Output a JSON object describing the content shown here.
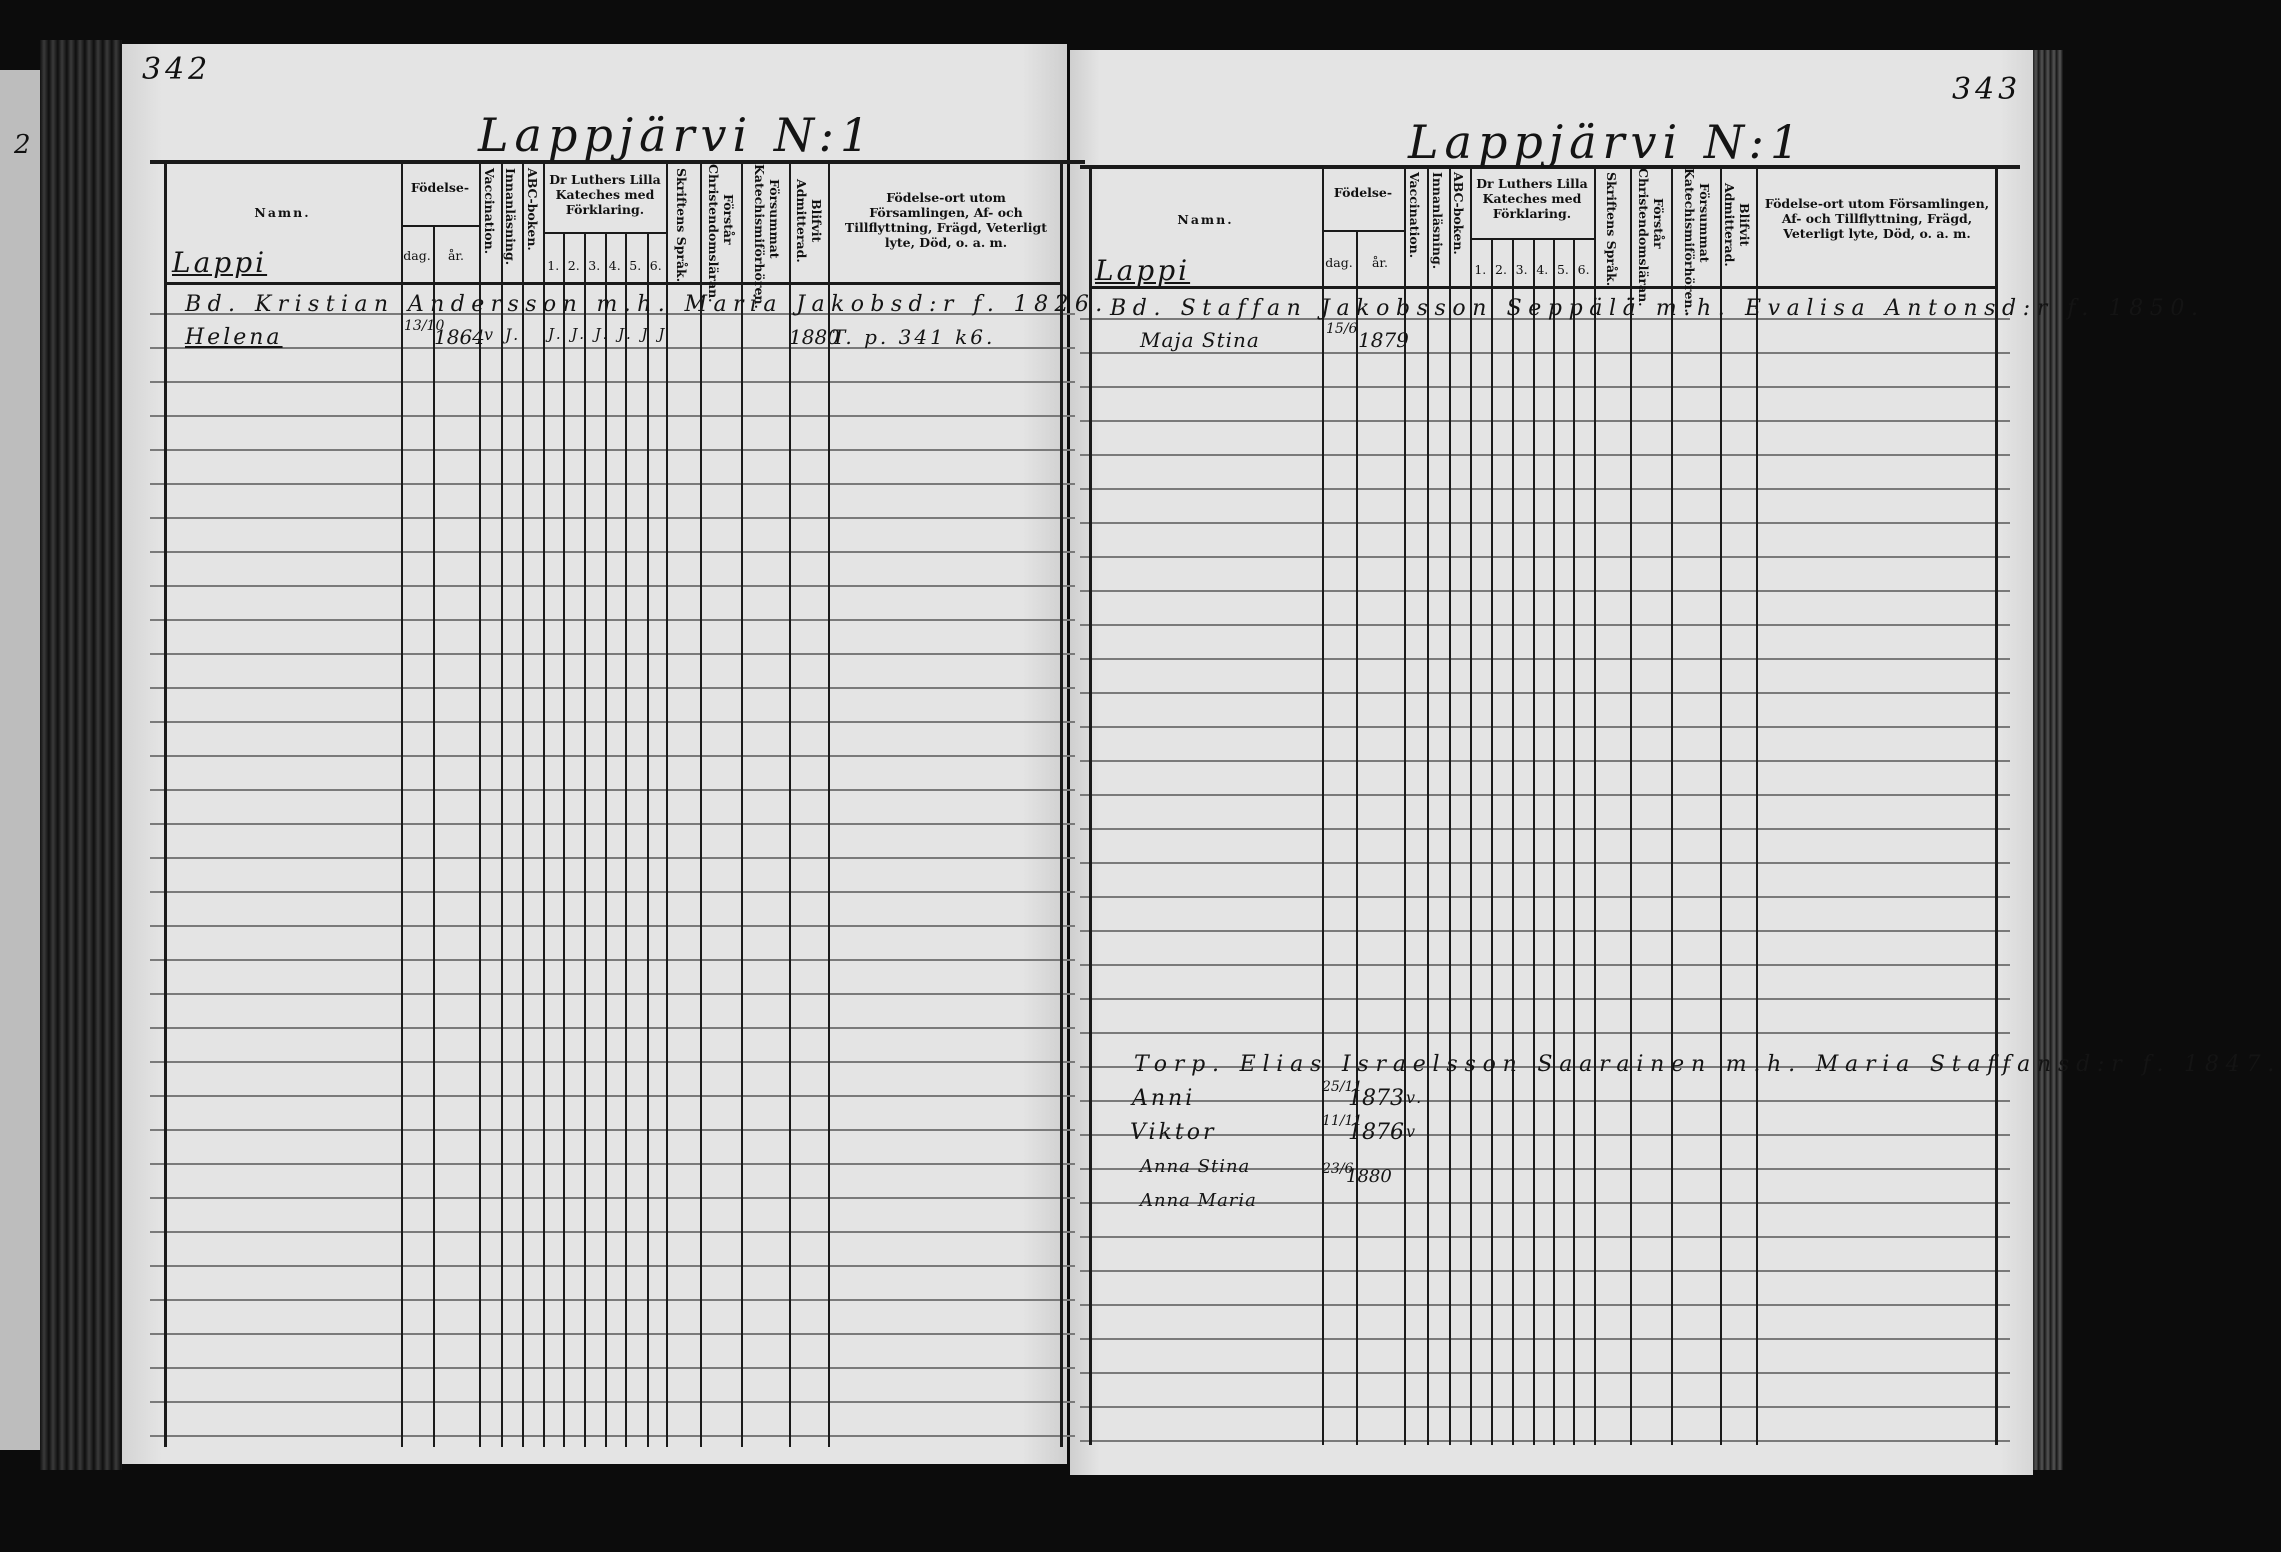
{
  "left_page": {
    "page_number": "342",
    "heading": "Lappjärvi N:1",
    "margin_tab": "2",
    "section": "Lappi",
    "headers": {
      "namn": "Namn.",
      "fodelse": "Födelse-",
      "dag": "dag.",
      "ar": "år.",
      "vaccination": "Vaccination.",
      "innanlasning": "Innanläsning.",
      "abc": "ABC-boken.",
      "luther": "Dr Luthers Lilla Kateches med Förklaring.",
      "luther_parts": [
        "1.",
        "2.",
        "3.",
        "4.",
        "5.",
        "6."
      ],
      "skriftens": "Skriftens Språk.",
      "forstar": "Förstår Christendomsläran.",
      "forsummat": "Försummat Katechismiförhören.",
      "blifvit": "Blifvit Admitterad.",
      "fodelseort": "Födelse-ort utom Församlingen, Af- och Tillflyttning, Frägd, Veterligt lyte, Död, o. a. m."
    },
    "entries": [
      {
        "line": "Bd. Kristian Andersson m.h. Maria Jakobsd:r f. 1826."
      },
      {
        "name": "Helena",
        "dag": "13/10",
        "ar": "1864",
        "vacc": "v",
        "innan": "J.",
        "luther": "J. J. J. J. J J",
        "admitted": "1880",
        "note": "T. p. 341 k6."
      }
    ]
  },
  "right_page": {
    "page_number": "343",
    "heading": "Lappjärvi N:1",
    "section": "Lappi",
    "headers": {
      "namn": "Namn.",
      "fodelse": "Födelse-",
      "dag": "dag.",
      "ar": "år.",
      "vaccination": "Vaccination.",
      "innanlasning": "Innanläsning.",
      "abc": "ABC-boken.",
      "luther": "Dr Luthers Lilla Kateches med Förklaring.",
      "luther_parts": [
        "1.",
        "2.",
        "3.",
        "4.",
        "5.",
        "6."
      ],
      "skriftens": "Skriftens Språk.",
      "forstar": "Förstår Christendomsläran.",
      "forsummat": "Försummat Katechismiförhören.",
      "blifvit": "Blifvit Admitterad.",
      "fodelseort": "Födelse-ort utom Församlingen, Af- och Tillflyttning, Frägd, Veterligt lyte, Död, o. a. m."
    },
    "entries": [
      {
        "line": "Bd. Staffan Jakobsson Seppälä m.h. Evalisa Antonsd:r f. 1850."
      },
      {
        "name": "Maja Stina",
        "dag": "15/6",
        "ar": "1879"
      },
      {
        "line": "Torp. Elias Israelsson Saarainen m.h. Maria Staffansd:r f. 1847."
      },
      {
        "name": "Anni",
        "dag": "25/11",
        "ar": "1873",
        "vacc": "v."
      },
      {
        "name": "Viktor",
        "dag": "11/11",
        "ar": "1876",
        "vacc": "v"
      },
      {
        "name": "Anna Stina",
        "dag": "23/6",
        "ar": "1880"
      },
      {
        "name": "Anna Maria"
      }
    ]
  }
}
